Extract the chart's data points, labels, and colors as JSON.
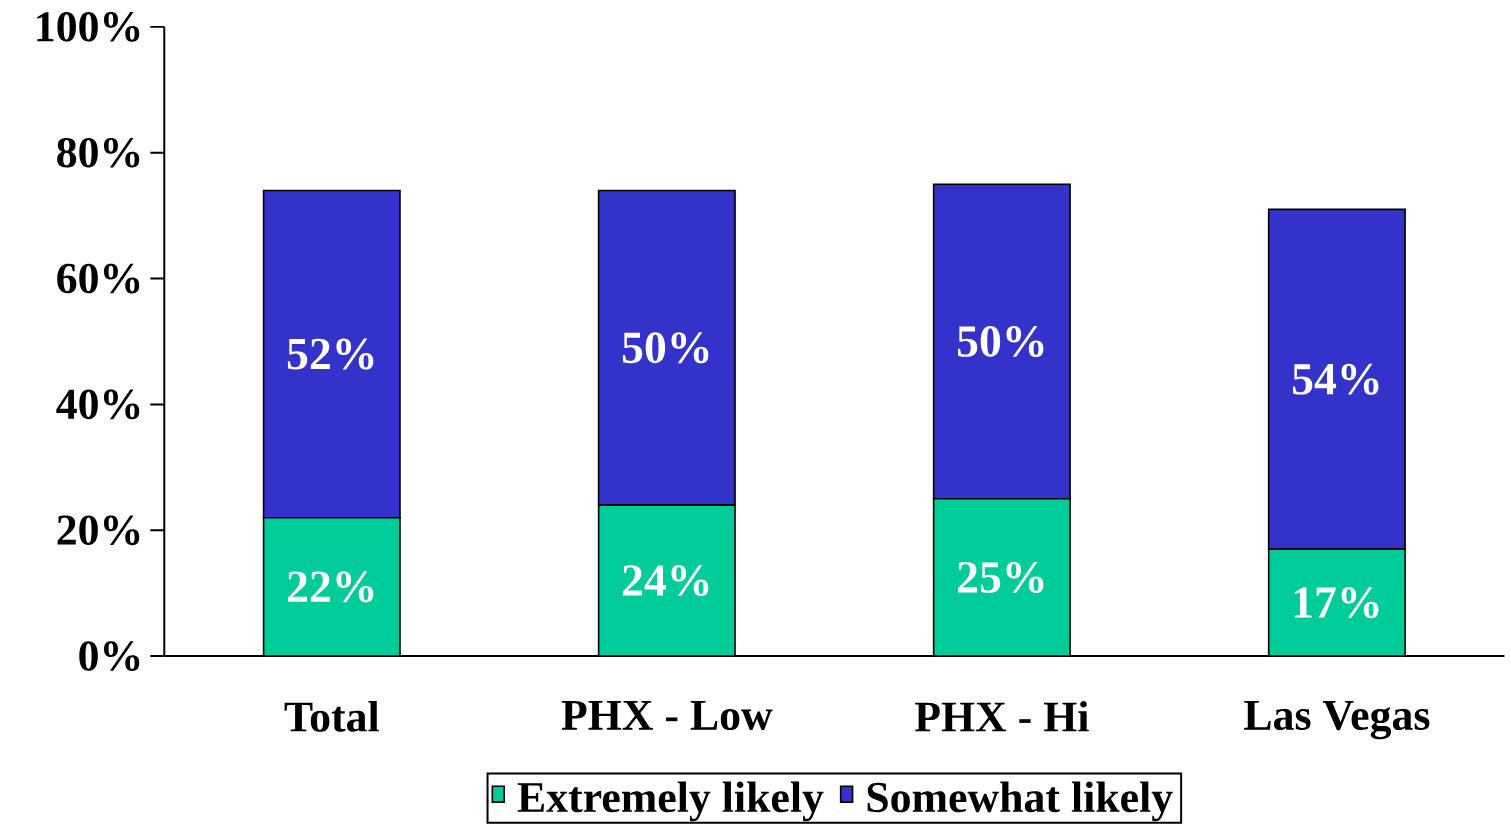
{
  "chart_data": {
    "type": "bar",
    "stacked": true,
    "legend": "bottom",
    "categories": [
      "Total",
      "PHX - Low",
      "PHX - Hi",
      "Las Vegas"
    ],
    "series": [
      {
        "name": "Extremely likely",
        "color": "#00cc99",
        "values": [
          22,
          24,
          25,
          17
        ],
        "value_labels": [
          "22%",
          "24%",
          "25%",
          "17%"
        ]
      },
      {
        "name": "Somewhat likely",
        "color": "#3333cc",
        "values": [
          52,
          50,
          50,
          54
        ],
        "value_labels": [
          "52%",
          "50%",
          "50%",
          "54%"
        ]
      }
    ],
    "ylim": [
      0,
      100
    ],
    "yticks": [
      {
        "value": 0,
        "label": "0%"
      },
      {
        "value": 20,
        "label": "20%"
      },
      {
        "value": 40,
        "label": "40%"
      },
      {
        "value": 60,
        "label": "60%"
      },
      {
        "value": 80,
        "label": "80%"
      },
      {
        "value": 100,
        "label": "100%"
      }
    ]
  }
}
